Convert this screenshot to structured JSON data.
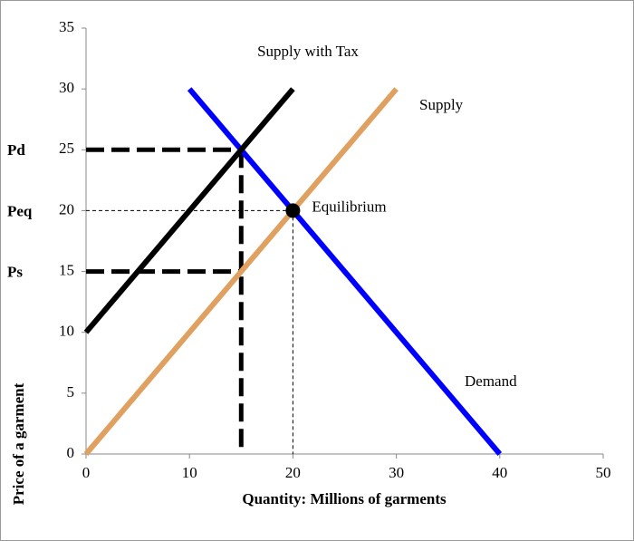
{
  "chart_data": {
    "type": "line",
    "xlabel": "Quantity: Millions of garments",
    "ylabel": "Price of a garment",
    "xlim": [
      0,
      50
    ],
    "xticks": [
      0,
      10,
      20,
      30,
      40,
      50
    ],
    "ylim": [
      0,
      35
    ],
    "yticks": [
      0,
      5,
      10,
      15,
      20,
      25,
      30,
      35
    ],
    "series": [
      {
        "name": "Supply",
        "color": "#e0a060",
        "x": [
          0,
          30
        ],
        "values": [
          0,
          30
        ]
      },
      {
        "name": "Demand",
        "color": "#0000ff",
        "x": [
          10,
          40
        ],
        "values": [
          30,
          0
        ]
      },
      {
        "name": "Supply with Tax",
        "color": "#000000",
        "x": [
          0,
          20
        ],
        "values": [
          10,
          30
        ]
      }
    ],
    "reference_lines": [
      {
        "label": "Pd",
        "y": 25,
        "x": 15,
        "vertical": true,
        "style": "thick"
      },
      {
        "label": "Peq",
        "y": 20,
        "x": 20,
        "vertical": true,
        "style": "thin"
      },
      {
        "label": "Ps",
        "y": 15,
        "x": 15,
        "vertical": false,
        "style": "thick"
      }
    ],
    "point": {
      "label": "Equilibrium",
      "x": 20,
      "y": 20
    }
  }
}
